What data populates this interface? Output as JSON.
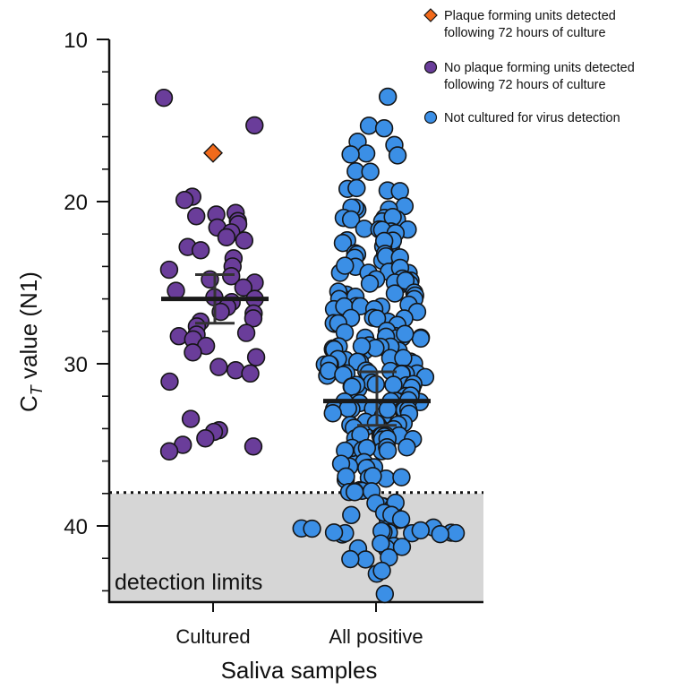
{
  "chart_data": {
    "type": "scatter",
    "xlabel": "Saliva samples",
    "ylabel": "C",
    "ylabel_subscript": "T",
    "ylabel_suffix": " value (N1)",
    "y_axis_inverted": true,
    "ylim": [
      10,
      45
    ],
    "yticks": [
      10,
      20,
      30,
      40
    ],
    "categories": [
      "Cultured",
      "All positive"
    ],
    "detection_limit": {
      "label": "detection limits",
      "threshold": 38,
      "color": "#d6d6d6"
    },
    "legend": [
      {
        "marker": "diamond",
        "color": "#f26a1b",
        "line1": "Plaque forming units detected",
        "line2": "following 72 hours of culture"
      },
      {
        "marker": "circle",
        "color": "#6a3d9a",
        "line1": "No plaque forming units detected",
        "line2": "following 72 hours of culture"
      },
      {
        "marker": "circle",
        "color": "#3b8fe6",
        "line1": "Not cultured for virus detection",
        "line2": ""
      }
    ],
    "series": [
      {
        "category": "Cultured",
        "points": [
          {
            "y": 17.0,
            "pfu": true
          },
          {
            "y": 13.6
          },
          {
            "y": 15.3
          },
          {
            "y": 19.7
          },
          {
            "y": 19.9
          },
          {
            "y": 20.7
          },
          {
            "y": 20.8
          },
          {
            "y": 20.9
          },
          {
            "y": 21.2
          },
          {
            "y": 21.4
          },
          {
            "y": 21.6
          },
          {
            "y": 21.9
          },
          {
            "y": 22.2
          },
          {
            "y": 22.4
          },
          {
            "y": 22.8
          },
          {
            "y": 23.0
          },
          {
            "y": 23.5
          },
          {
            "y": 24.0
          },
          {
            "y": 24.2
          },
          {
            "y": 24.6
          },
          {
            "y": 24.8
          },
          {
            "y": 25.0
          },
          {
            "y": 25.3
          },
          {
            "y": 25.5
          },
          {
            "y": 25.9
          },
          {
            "y": 26.0
          },
          {
            "y": 26.2
          },
          {
            "y": 26.5
          },
          {
            "y": 26.8
          },
          {
            "y": 26.9
          },
          {
            "y": 27.2
          },
          {
            "y": 27.4
          },
          {
            "y": 27.7
          },
          {
            "y": 28.1
          },
          {
            "y": 28.2
          },
          {
            "y": 28.3
          },
          {
            "y": 28.5
          },
          {
            "y": 28.9
          },
          {
            "y": 29.3
          },
          {
            "y": 29.6
          },
          {
            "y": 30.2
          },
          {
            "y": 30.4
          },
          {
            "y": 30.6
          },
          {
            "y": 31.1
          },
          {
            "y": 33.4
          },
          {
            "y": 34.1
          },
          {
            "y": 34.2
          },
          {
            "y": 34.6
          },
          {
            "y": 35.0
          },
          {
            "y": 35.1
          },
          {
            "y": 35.4
          }
        ],
        "mean": 26.0,
        "ci": [
          24.5,
          27.5
        ]
      },
      {
        "category": "All positive",
        "mean": 32.3,
        "ci": [
          30.5,
          33.8
        ]
      }
    ]
  }
}
